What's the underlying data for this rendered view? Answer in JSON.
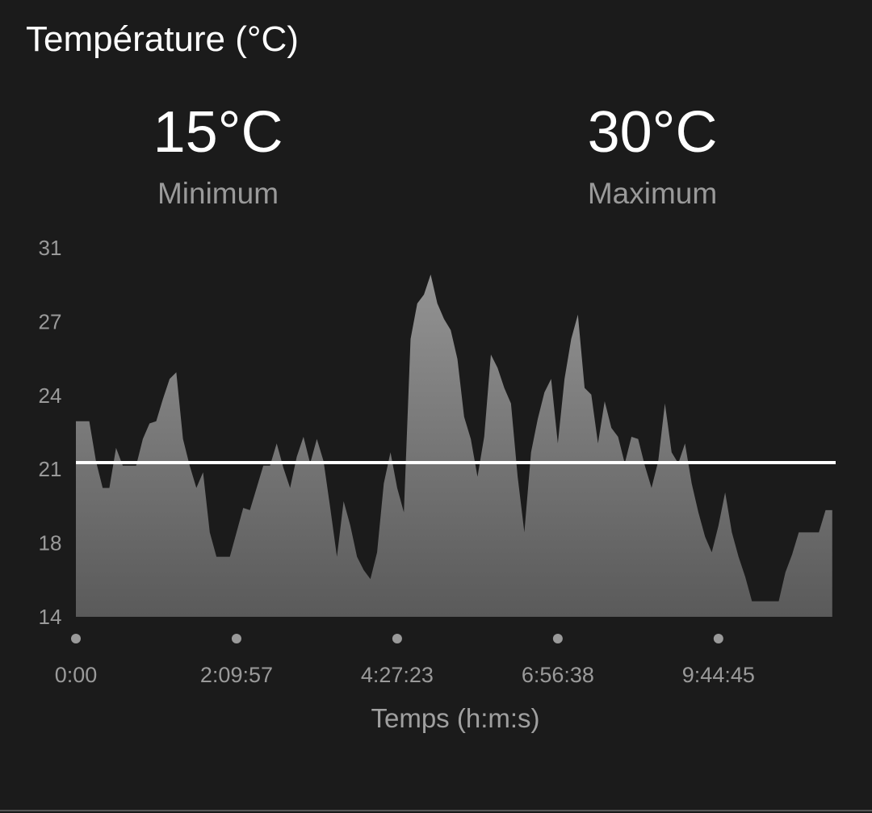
{
  "header": {
    "title": "Température (°C)"
  },
  "stats": [
    {
      "value": "15°C",
      "label": "Minimum"
    },
    {
      "value": "30°C",
      "label": "Maximum"
    }
  ],
  "chart_data": {
    "type": "area",
    "x": [
      "0:00",
      null,
      null,
      null,
      null,
      null,
      null,
      null,
      null,
      null,
      null,
      null,
      null,
      null,
      null,
      null,
      null,
      null,
      null,
      null,
      null,
      null,
      null,
      null,
      "2:09:57",
      null,
      null,
      null,
      null,
      null,
      null,
      null,
      null,
      null,
      null,
      null,
      null,
      null,
      null,
      null,
      null,
      null,
      null,
      null,
      null,
      null,
      null,
      null,
      "4:27:23",
      null,
      null,
      null,
      null,
      null,
      null,
      null,
      null,
      null,
      null,
      null,
      null,
      null,
      null,
      null,
      null,
      null,
      null,
      null,
      null,
      null,
      null,
      null,
      "6:56:38",
      null,
      null,
      null,
      null,
      null,
      null,
      null,
      null,
      null,
      null,
      null,
      null,
      null,
      null,
      null,
      null,
      null,
      null,
      null,
      null,
      null,
      null,
      null,
      "9:44:45",
      null,
      null,
      null,
      null,
      null,
      null,
      null,
      null,
      null,
      null,
      null,
      null,
      null,
      null,
      null,
      null,
      null
    ],
    "values": [
      23.0,
      23.0,
      23.0,
      21.2,
      20.0,
      20.0,
      21.8,
      21.0,
      21.0,
      21.0,
      22.2,
      22.9,
      23.0,
      24.0,
      24.9,
      25.2,
      22.2,
      21.0,
      20.0,
      20.7,
      18.0,
      16.9,
      16.9,
      16.9,
      18.0,
      19.1,
      19.0,
      20.0,
      21.0,
      21.0,
      22.0,
      20.9,
      20.0,
      21.4,
      22.3,
      21.1,
      22.2,
      21.2,
      19.1,
      16.9,
      19.4,
      18.3,
      16.9,
      16.3,
      15.9,
      17.1,
      20.2,
      21.6,
      20.0,
      18.9,
      26.7,
      28.3,
      28.7,
      29.6,
      28.3,
      27.6,
      27.1,
      25.8,
      23.2,
      22.2,
      20.5,
      22.3,
      26.0,
      25.4,
      24.5,
      23.8,
      20.5,
      18.0,
      21.6,
      23.1,
      24.3,
      24.9,
      22.0,
      24.9,
      26.7,
      27.8,
      24.5,
      24.2,
      22.0,
      23.9,
      22.7,
      22.3,
      21.1,
      22.3,
      22.2,
      21.0,
      20.0,
      21.2,
      23.8,
      21.6,
      21.1,
      22.0,
      20.2,
      18.9,
      17.8,
      17.1,
      18.3,
      19.8,
      18.0,
      16.9,
      16.0,
      14.9,
      14.9,
      14.9,
      14.9,
      14.9,
      16.2,
      17.0,
      18.0,
      18.0,
      18.0,
      18.0,
      19.0,
      19.0
    ],
    "ylim": [
      14.2,
      30.8
    ],
    "yticks": [
      {
        "value": 14.2,
        "label": "14"
      },
      {
        "value": 17.52,
        "label": "18"
      },
      {
        "value": 20.84,
        "label": "21"
      },
      {
        "value": 24.16,
        "label": "24"
      },
      {
        "value": 27.48,
        "label": "27"
      },
      {
        "value": 30.8,
        "label": "31"
      }
    ],
    "hline": 21.14,
    "xlabel": "Temps (h:m:s)",
    "gradient": [
      "#939393",
      "#5a5a5a"
    ],
    "line_color": "#ffffff"
  }
}
